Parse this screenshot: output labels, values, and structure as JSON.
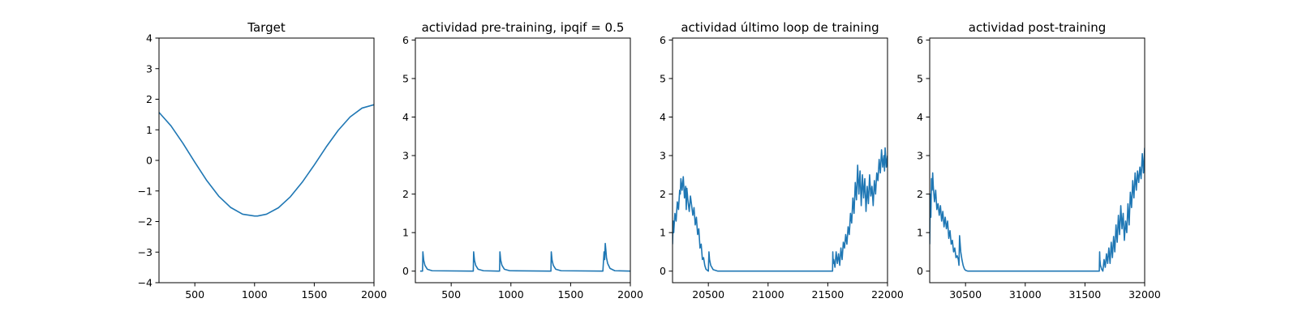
{
  "colors": {
    "series": "#1f77b4",
    "axes": "#000000",
    "background": "#ffffff"
  },
  "chart_data": [
    {
      "type": "line",
      "title": "Target",
      "xlim": [
        200,
        2000
      ],
      "ylim": [
        -4,
        4
      ],
      "xticks": [
        500,
        1000,
        1500,
        2000
      ],
      "xticklabels": [
        "500",
        "1000",
        "1500",
        "2000"
      ],
      "yticks": [
        -4,
        -3,
        -2,
        -1,
        0,
        1,
        2,
        3,
        4
      ],
      "yticklabels": [
        "−4",
        "−3",
        "−2",
        "−1",
        "0",
        "1",
        "2",
        "3",
        "4"
      ],
      "series": [
        {
          "x": [
            200,
            300,
            400,
            500,
            600,
            700,
            800,
            900,
            1000,
            1025,
            1100,
            1200,
            1300,
            1400,
            1500,
            1600,
            1700,
            1800,
            1900,
            2000
          ],
          "y": [
            1.57,
            1.13,
            0.56,
            -0.06,
            -0.66,
            -1.17,
            -1.54,
            -1.76,
            -1.82,
            -1.82,
            -1.76,
            -1.55,
            -1.19,
            -0.71,
            -0.15,
            0.44,
            0.98,
            1.42,
            1.71,
            1.82
          ]
        }
      ]
    },
    {
      "type": "line",
      "title": "actividad pre-training, ipqif = 0.5",
      "xlim": [
        200,
        2000
      ],
      "ylim": [
        -0.3,
        6.05
      ],
      "xticks": [
        500,
        1000,
        1500,
        2000
      ],
      "xticklabels": [
        "500",
        "1000",
        "1500",
        "2000"
      ],
      "yticks": [
        0,
        1,
        2,
        3,
        4,
        5,
        6
      ],
      "yticklabels": [
        "0",
        "1",
        "2",
        "3",
        "4",
        "5",
        "6"
      ],
      "series": [
        {
          "x": [
            240,
            260,
            263,
            270,
            280,
            300,
            340,
            670,
            685,
            688,
            695,
            705,
            725,
            770,
            890,
            905,
            908,
            915,
            925,
            945,
            990,
            1320,
            1335,
            1338,
            1345,
            1355,
            1375,
            1420,
            1770,
            1780,
            1785,
            1790,
            1795,
            1800,
            1810,
            1830,
            1870,
            2000
          ],
          "y": [
            0,
            0,
            0.5,
            0.28,
            0.15,
            0.05,
            0.01,
            0,
            0,
            0.5,
            0.28,
            0.15,
            0.05,
            0.01,
            0,
            0,
            0.5,
            0.28,
            0.15,
            0.05,
            0.01,
            0,
            0,
            0.5,
            0.28,
            0.15,
            0.05,
            0.01,
            0,
            0.5,
            0.3,
            0.72,
            0.55,
            0.35,
            0.2,
            0.07,
            0.01,
            0
          ]
        }
      ]
    },
    {
      "type": "line",
      "title": "actividad último loop de training",
      "xlim": [
        20200,
        22000
      ],
      "ylim": [
        -0.3,
        6.05
      ],
      "xticks": [
        20500,
        21000,
        21500,
        22000
      ],
      "xticklabels": [
        "20500",
        "21000",
        "21500",
        "22000"
      ],
      "yticks": [
        0,
        1,
        2,
        3,
        4,
        5,
        6
      ],
      "yticklabels": [
        "0",
        "1",
        "2",
        "3",
        "4",
        "5",
        "6"
      ],
      "series": [
        {
          "x": [
            20200,
            20205,
            20210,
            20220,
            20230,
            20240,
            20250,
            20260,
            20265,
            20270,
            20280,
            20290,
            20300,
            20310,
            20315,
            20320,
            20330,
            20340,
            20350,
            20360,
            20370,
            20380,
            20390,
            20400,
            20410,
            20420,
            20430,
            20440,
            20450,
            20460,
            20470,
            20480,
            20500,
            20505,
            20510,
            20520,
            20540,
            20580,
            21540,
            21542,
            21545,
            21550,
            21560,
            21570,
            21580,
            21590,
            21600,
            21610,
            21620,
            21630,
            21640,
            21650,
            21660,
            21670,
            21680,
            21690,
            21700,
            21710,
            21720,
            21730,
            21740,
            21750,
            21760,
            21770,
            21780,
            21790,
            21800,
            21810,
            21820,
            21830,
            21840,
            21850,
            21860,
            21870,
            21880,
            21890,
            21900,
            21910,
            21920,
            21930,
            21940,
            21950,
            21960,
            21970,
            21975,
            21980,
            21990,
            22000
          ],
          "y": [
            0.7,
            1.3,
            1.0,
            1.5,
            1.3,
            1.8,
            1.6,
            2.1,
            2.0,
            2.4,
            2.1,
            2.45,
            1.9,
            2.2,
            1.6,
            2.15,
            1.8,
            1.55,
            1.95,
            1.7,
            1.45,
            1.65,
            1.2,
            1.4,
            0.95,
            1.1,
            0.6,
            0.7,
            0.3,
            0.35,
            0.15,
            0.05,
            0,
            0.5,
            0.3,
            0.15,
            0.04,
            0,
            0,
            0.5,
            0.2,
            0.3,
            0.1,
            0.5,
            0.2,
            0.45,
            0.15,
            0.6,
            0.3,
            0.75,
            0.6,
            0.95,
            0.7,
            1.15,
            0.95,
            1.5,
            1.25,
            1.9,
            1.5,
            2.3,
            1.85,
            2.75,
            2.0,
            2.6,
            1.7,
            2.5,
            1.9,
            2.4,
            1.55,
            2.2,
            1.75,
            2.5,
            1.95,
            2.2,
            1.7,
            2.35,
            2.0,
            2.55,
            2.35,
            2.9,
            2.55,
            3.15,
            2.7,
            3.0,
            2.6,
            3.2,
            2.7,
            3.0
          ]
        }
      ]
    },
    {
      "type": "line",
      "title": "actividad post-training",
      "xlim": [
        30200,
        32000
      ],
      "ylim": [
        -0.3,
        6.05
      ],
      "xticks": [
        30500,
        31000,
        31500,
        32000
      ],
      "xticklabels": [
        "30500",
        "31000",
        "31500",
        "32000"
      ],
      "yticks": [
        0,
        1,
        2,
        3,
        4,
        5,
        6
      ],
      "yticklabels": [
        "0",
        "1",
        "2",
        "3",
        "4",
        "5",
        "6"
      ],
      "series": [
        {
          "x": [
            30200,
            30205,
            30210,
            30215,
            30220,
            30225,
            30230,
            30240,
            30250,
            30260,
            30270,
            30280,
            30290,
            30300,
            30310,
            30320,
            30330,
            30340,
            30350,
            30360,
            30370,
            30380,
            30390,
            30400,
            30410,
            30420,
            30430,
            30440,
            30445,
            30450,
            30460,
            30470,
            30480,
            30490,
            30500,
            30520,
            30560,
            31620,
            31623,
            31625,
            31630,
            31640,
            31650,
            31660,
            31670,
            31680,
            31690,
            31700,
            31710,
            31720,
            31730,
            31740,
            31750,
            31760,
            31770,
            31780,
            31790,
            31800,
            31810,
            31820,
            31830,
            31840,
            31850,
            31860,
            31870,
            31880,
            31890,
            31900,
            31910,
            31920,
            31930,
            31940,
            31950,
            31960,
            31970,
            31980,
            31990,
            32000
          ],
          "y": [
            0.7,
            2.0,
            1.4,
            2.4,
            2.1,
            2.55,
            2.2,
            1.8,
            2.1,
            1.6,
            1.75,
            1.45,
            1.7,
            1.3,
            1.55,
            1.15,
            1.4,
            1.1,
            1.3,
            0.85,
            1.05,
            0.7,
            0.8,
            0.5,
            0.6,
            0.35,
            0.4,
            0.3,
            0.15,
            0.92,
            0.5,
            0.3,
            0.15,
            0.06,
            0.02,
            0,
            0,
            0,
            0.5,
            0.3,
            0.15,
            0.05,
            0,
            0.3,
            0.1,
            0.45,
            0.2,
            0.6,
            0.2,
            0.75,
            0.35,
            0.9,
            0.5,
            1.2,
            0.75,
            1.45,
            0.95,
            1.7,
            1.1,
            1.5,
            0.8,
            1.3,
            1.0,
            1.75,
            1.2,
            2.05,
            1.65,
            2.35,
            1.9,
            2.55,
            2.1,
            2.6,
            2.3,
            2.7,
            2.4,
            3.05,
            2.55,
            3.2
          ]
        }
      ]
    }
  ]
}
